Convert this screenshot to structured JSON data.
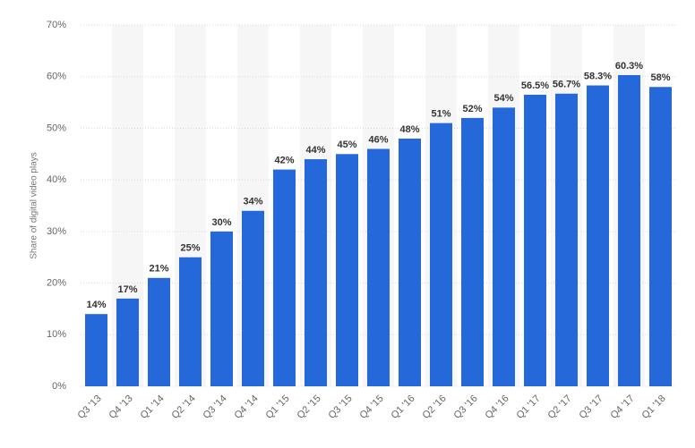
{
  "chart_data": {
    "type": "bar",
    "y_axis_label": "Share of digital video plays",
    "categories": [
      "Q3 '13",
      "Q4 '13",
      "Q1 '14",
      "Q2 '14",
      "Q3 '14",
      "Q4 '14",
      "Q1 '15",
      "Q2 '15",
      "Q3 '15",
      "Q4 '15",
      "Q1 '16",
      "Q2 '16",
      "Q3 '16",
      "Q4 '16",
      "Q1 '17",
      "Q2 '17",
      "Q3 '17",
      "Q4 '17",
      "Q1 '18"
    ],
    "values": [
      14,
      17,
      21,
      25,
      30,
      34,
      42,
      44,
      45,
      46,
      48,
      51,
      52,
      54,
      56.5,
      56.7,
      58.3,
      60.3,
      58
    ],
    "value_labels": [
      "14%",
      "17%",
      "21%",
      "25%",
      "30%",
      "34%",
      "42%",
      "44%",
      "45%",
      "46%",
      "48%",
      "51%",
      "52%",
      "54%",
      "56.5%",
      "56.7%",
      "58.3%",
      "60.3%",
      "58%"
    ],
    "color": "#2468d9",
    "ylim": [
      0,
      70
    ],
    "yticks": [
      {
        "value": 0,
        "label": "0%"
      },
      {
        "value": 10,
        "label": "10%"
      },
      {
        "value": 20,
        "label": "20%"
      },
      {
        "value": 30,
        "label": "30%"
      },
      {
        "value": 40,
        "label": "40%"
      },
      {
        "value": 50,
        "label": "50%"
      },
      {
        "value": 60,
        "label": "60%"
      },
      {
        "value": 70,
        "label": "70%"
      }
    ],
    "grid": true
  }
}
